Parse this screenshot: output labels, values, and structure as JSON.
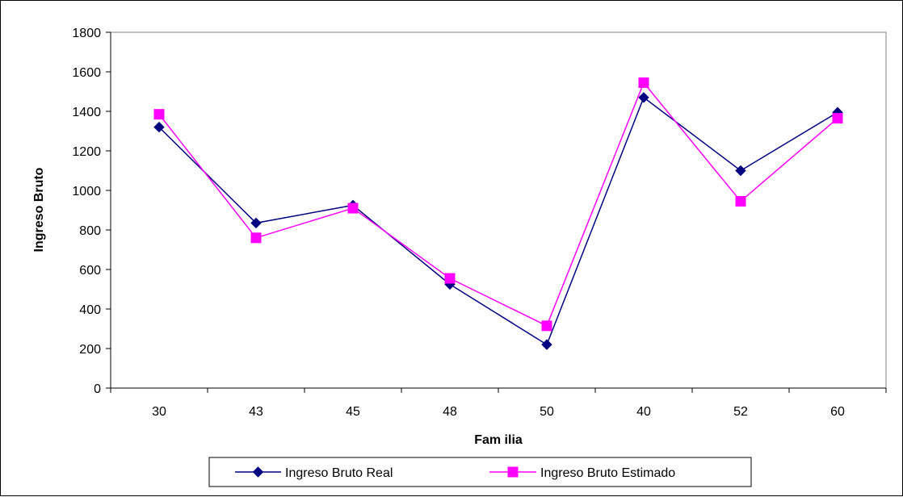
{
  "chart_data": {
    "type": "line",
    "title": "",
    "xlabel": "Fam ilia",
    "ylabel": "Ingreso  Bruto",
    "categories": [
      "30",
      "43",
      "45",
      "48",
      "50",
      "40",
      "52",
      "60"
    ],
    "ylim": [
      0,
      1800
    ],
    "yticks": [
      "0",
      "200",
      "400",
      "600",
      "800",
      "1000",
      "1200",
      "1400",
      "1600",
      "1800"
    ],
    "grid": false,
    "legend_position": "bottom",
    "series": [
      {
        "name": "Ingreso Bruto Real",
        "color": "#000080",
        "marker": "diamond",
        "values": [
          1320,
          835,
          925,
          525,
          220,
          1470,
          1100,
          1395
        ]
      },
      {
        "name": "Ingreso Bruto Estimado",
        "color": "#FF00FF",
        "marker": "square",
        "values": [
          1385,
          760,
          910,
          555,
          315,
          1545,
          945,
          1365
        ]
      }
    ]
  }
}
